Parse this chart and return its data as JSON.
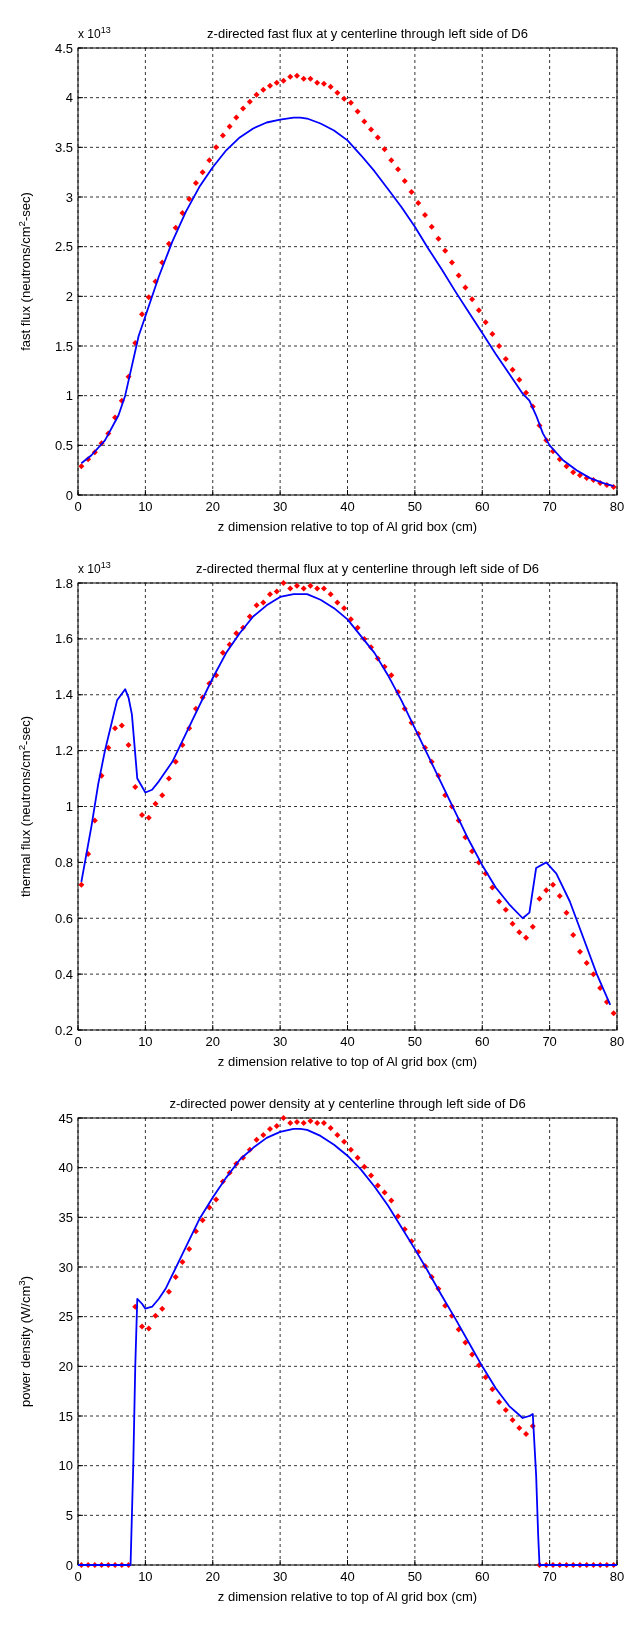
{
  "chart_data": [
    {
      "type": "line",
      "title": "z-directed fast flux at y centerline through left side of D6",
      "xlabel": "z dimension relative to top of Al grid box (cm)",
      "ylabel": "fast flux (neutrons/cm$^{2}$-sec)",
      "annotations": [
        "x 10$^{13}$"
      ],
      "xlim": [
        0,
        80
      ],
      "xticks": [
        0,
        10,
        20,
        30,
        40,
        50,
        60,
        70,
        80
      ],
      "ylim": [
        0,
        4.5
      ],
      "yticks": [
        0,
        0.5,
        1,
        1.5,
        2,
        2.5,
        3,
        3.5,
        4,
        4.5
      ],
      "grid": true,
      "series": [
        {
          "type": "scatter",
          "marker": "diamond",
          "color": "#ff0000",
          "x": [
            0.5,
            1.5,
            2.5,
            3.5,
            4.5,
            5.5,
            6.5,
            7.5,
            8.5,
            9.5,
            10.5,
            11.5,
            12.5,
            13.5,
            14.5,
            15.5,
            16.5,
            17.5,
            18.5,
            19.5,
            20.5,
            21.5,
            22.5,
            23.5,
            24.5,
            25.5,
            26.5,
            27.5,
            28.5,
            29.5,
            30.5,
            31.5,
            32.5,
            33.5,
            34.5,
            35.5,
            36.5,
            37.5,
            38.5,
            39.5,
            40.5,
            41.5,
            42.5,
            43.5,
            44.5,
            45.5,
            46.5,
            47.5,
            48.5,
            49.5,
            50.5,
            51.5,
            52.5,
            53.5,
            54.5,
            55.5,
            56.5,
            57.5,
            58.5,
            59.5,
            60.5,
            61.5,
            62.5,
            63.5,
            64.5,
            65.5,
            66.5,
            67.5,
            68.5,
            69.5,
            70.5,
            71.5,
            72.5,
            73.5,
            74.5,
            75.5,
            76.5,
            77.5,
            78.5,
            79.5
          ],
          "values": [
            0.29,
            0.36,
            0.43,
            0.52,
            0.62,
            0.78,
            0.95,
            1.19,
            1.53,
            1.82,
            1.99,
            2.15,
            2.34,
            2.53,
            2.69,
            2.84,
            2.98,
            3.14,
            3.25,
            3.37,
            3.5,
            3.62,
            3.71,
            3.8,
            3.89,
            3.96,
            4.03,
            4.08,
            4.12,
            4.15,
            4.17,
            4.21,
            4.22,
            4.19,
            4.19,
            4.15,
            4.14,
            4.11,
            4.05,
            3.99,
            3.95,
            3.86,
            3.76,
            3.68,
            3.6,
            3.48,
            3.37,
            3.28,
            3.16,
            3.05,
            2.94,
            2.82,
            2.7,
            2.58,
            2.46,
            2.34,
            2.21,
            2.09,
            1.97,
            1.86,
            1.74,
            1.62,
            1.5,
            1.37,
            1.26,
            1.16,
            1.03,
            0.89,
            0.7,
            0.55,
            0.44,
            0.36,
            0.29,
            0.23,
            0.2,
            0.17,
            0.15,
            0.12,
            0.1,
            0.08
          ]
        },
        {
          "line_style": "solid",
          "color": "#0000ff",
          "x": [
            0.5,
            2,
            4,
            6,
            7,
            8,
            9,
            10,
            12,
            14,
            16,
            18,
            20,
            22,
            24,
            26,
            28,
            30,
            32,
            33,
            34,
            36,
            38,
            40,
            42,
            44,
            46,
            48,
            50,
            52,
            54,
            56,
            58,
            60,
            62,
            64,
            66,
            67,
            68,
            69,
            70,
            72,
            74,
            76,
            78,
            79.5
          ],
          "values": [
            0.32,
            0.4,
            0.55,
            0.8,
            1.0,
            1.3,
            1.6,
            1.8,
            2.2,
            2.55,
            2.85,
            3.1,
            3.3,
            3.47,
            3.6,
            3.69,
            3.75,
            3.78,
            3.8,
            3.8,
            3.79,
            3.74,
            3.67,
            3.57,
            3.42,
            3.26,
            3.08,
            2.9,
            2.7,
            2.48,
            2.27,
            2.05,
            1.84,
            1.63,
            1.42,
            1.22,
            1.02,
            0.95,
            0.8,
            0.62,
            0.5,
            0.35,
            0.25,
            0.17,
            0.12,
            0.09
          ]
        }
      ]
    },
    {
      "type": "line",
      "title": "z-directed thermal flux at y centerline through left side of D6",
      "xlabel": "z dimension relative to top of Al grid box (cm)",
      "ylabel": "thermal flux (neutrons/cm$^{2}$-sec)",
      "annotations": [
        "x 10$^{13}$"
      ],
      "xlim": [
        0,
        80
      ],
      "xticks": [
        0,
        10,
        20,
        30,
        40,
        50,
        60,
        70,
        80
      ],
      "ylim": [
        0.2,
        1.8
      ],
      "yticks": [
        0.2,
        0.4,
        0.6,
        0.8,
        1,
        1.2,
        1.4,
        1.6,
        1.8
      ],
      "grid": true,
      "series": [
        {
          "type": "scatter",
          "marker": "diamond",
          "color": "#ff0000",
          "x": [
            0.5,
            1.5,
            2.5,
            3.5,
            4.5,
            5.5,
            6.5,
            7.5,
            8.5,
            9.5,
            10.5,
            11.5,
            12.5,
            13.5,
            14.5,
            15.5,
            16.5,
            17.5,
            18.5,
            19.5,
            20.5,
            21.5,
            22.5,
            23.5,
            24.5,
            25.5,
            26.5,
            27.5,
            28.5,
            29.5,
            30.5,
            31.5,
            32.5,
            33.5,
            34.5,
            35.5,
            36.5,
            37.5,
            38.5,
            39.5,
            40.5,
            41.5,
            42.5,
            43.5,
            44.5,
            45.5,
            46.5,
            47.5,
            48.5,
            49.5,
            50.5,
            51.5,
            52.5,
            53.5,
            54.5,
            55.5,
            56.5,
            57.5,
            58.5,
            59.5,
            60.5,
            61.5,
            62.5,
            63.5,
            64.5,
            65.5,
            66.5,
            67.5,
            68.5,
            69.5,
            70.5,
            71.5,
            72.5,
            73.5,
            74.5,
            75.5,
            76.5,
            77.5,
            78.5,
            79.5
          ],
          "values": [
            0.72,
            0.83,
            0.95,
            1.11,
            1.21,
            1.28,
            1.29,
            1.22,
            1.07,
            0.97,
            0.96,
            1.01,
            1.04,
            1.1,
            1.16,
            1.22,
            1.28,
            1.35,
            1.39,
            1.44,
            1.47,
            1.55,
            1.58,
            1.62,
            1.64,
            1.68,
            1.72,
            1.73,
            1.76,
            1.77,
            1.8,
            1.78,
            1.79,
            1.78,
            1.79,
            1.78,
            1.78,
            1.76,
            1.73,
            1.71,
            1.67,
            1.64,
            1.6,
            1.57,
            1.53,
            1.5,
            1.47,
            1.41,
            1.35,
            1.3,
            1.26,
            1.21,
            1.16,
            1.11,
            1.04,
            1.0,
            0.95,
            0.89,
            0.84,
            0.8,
            0.76,
            0.71,
            0.66,
            0.63,
            0.58,
            0.55,
            0.53,
            0.57,
            0.67,
            0.7,
            0.72,
            0.68,
            0.62,
            0.54,
            0.48,
            0.44,
            0.4,
            0.35,
            0.3,
            0.26
          ]
        },
        {
          "line_style": "solid",
          "color": "#0000ff",
          "x": [
            0.5,
            2,
            3,
            4,
            5,
            5.8,
            7,
            7.5,
            8,
            8.8,
            10,
            11,
            12,
            14,
            16,
            18,
            20,
            22,
            24,
            26,
            28,
            30,
            32,
            33,
            34,
            36,
            38,
            40,
            42,
            44,
            46,
            48,
            50,
            52,
            54,
            56,
            58,
            60,
            62,
            64,
            66,
            67,
            68,
            69.5,
            71,
            73,
            75,
            77,
            79
          ],
          "values": [
            0.73,
            0.93,
            1.08,
            1.2,
            1.3,
            1.38,
            1.42,
            1.39,
            1.33,
            1.1,
            1.05,
            1.06,
            1.09,
            1.16,
            1.26,
            1.36,
            1.46,
            1.55,
            1.62,
            1.68,
            1.72,
            1.75,
            1.76,
            1.76,
            1.76,
            1.74,
            1.71,
            1.67,
            1.61,
            1.55,
            1.47,
            1.38,
            1.28,
            1.18,
            1.08,
            0.98,
            0.88,
            0.79,
            0.71,
            0.65,
            0.6,
            0.62,
            0.78,
            0.8,
            0.76,
            0.66,
            0.53,
            0.4,
            0.29
          ]
        }
      ]
    },
    {
      "type": "line",
      "title": "z-directed power density at y centerline through left side of D6",
      "xlabel": "z dimension relative to top of Al grid box (cm)",
      "ylabel": "power density (W/cm$^{3}$)",
      "xlim": [
        0,
        80
      ],
      "xticks": [
        0,
        10,
        20,
        30,
        40,
        50,
        60,
        70,
        80
      ],
      "ylim": [
        0,
        45
      ],
      "yticks": [
        0,
        5,
        10,
        15,
        20,
        25,
        30,
        35,
        40,
        45
      ],
      "grid": true,
      "series": [
        {
          "type": "scatter",
          "marker": "diamond",
          "color": "#ff0000",
          "x": [
            0.5,
            1.5,
            2.5,
            3.5,
            4.5,
            5.5,
            6.5,
            7.5,
            8.5,
            9.5,
            10.5,
            11.5,
            12.5,
            13.5,
            14.5,
            15.5,
            16.5,
            17.5,
            18.5,
            19.5,
            20.5,
            21.5,
            22.5,
            23.5,
            24.5,
            25.5,
            26.5,
            27.5,
            28.5,
            29.5,
            30.5,
            31.5,
            32.5,
            33.5,
            34.5,
            35.5,
            36.5,
            37.5,
            38.5,
            39.5,
            40.5,
            41.5,
            42.5,
            43.5,
            44.5,
            45.5,
            46.5,
            47.5,
            48.5,
            49.5,
            50.5,
            51.5,
            52.5,
            53.5,
            54.5,
            55.5,
            56.5,
            57.5,
            58.5,
            59.5,
            60.5,
            61.5,
            62.5,
            63.5,
            64.5,
            65.5,
            66.5,
            67.5,
            68.5,
            69.5,
            70.5,
            71.5,
            72.5,
            73.5,
            74.5,
            75.5,
            76.5,
            77.5,
            78.5,
            79.5
          ],
          "values": [
            0,
            0,
            0,
            0,
            0,
            0,
            0,
            0,
            26,
            24,
            23.8,
            25.1,
            25.8,
            27.5,
            29,
            30.5,
            31.8,
            33.6,
            34.7,
            36,
            36.8,
            38.6,
            39.5,
            40.4,
            41,
            41.8,
            42.8,
            43.3,
            43.9,
            44.2,
            45,
            44.5,
            44.6,
            44.5,
            44.7,
            44.5,
            44.5,
            44,
            43.3,
            42.6,
            41.8,
            41,
            40.1,
            39.2,
            38.2,
            37.5,
            36.7,
            35.1,
            33.8,
            32.6,
            31.5,
            30.1,
            29,
            27.8,
            26.1,
            25.1,
            23.7,
            22.4,
            21.2,
            20.1,
            18.9,
            17.7,
            16.4,
            15.6,
            14.6,
            13.8,
            13.2,
            14,
            0,
            0,
            0,
            0,
            0,
            0,
            0,
            0,
            0,
            0,
            0,
            0
          ]
        },
        {
          "line_style": "solid",
          "color": "#0000ff",
          "x": [
            0,
            7.8,
            8.2,
            8.5,
            8.8,
            9.5,
            10,
            11,
            12,
            13,
            14,
            16,
            18,
            20,
            22,
            24,
            26,
            28,
            30,
            32,
            33,
            34,
            36,
            38,
            40,
            42,
            44,
            46,
            48,
            50,
            52,
            54,
            56,
            58,
            60,
            62,
            64,
            66,
            67,
            67.5,
            68,
            68.3,
            68.5,
            80
          ],
          "values": [
            0,
            0,
            10,
            20,
            26.8,
            26.3,
            25.8,
            26,
            26.8,
            27.8,
            29.2,
            32,
            34.8,
            37,
            39,
            40.8,
            42,
            43,
            43.6,
            43.9,
            43.9,
            43.8,
            43.2,
            42.3,
            41.2,
            39.8,
            38.1,
            36.2,
            34,
            31.8,
            29.5,
            27.1,
            24.8,
            22.4,
            20,
            17.8,
            16,
            14.8,
            15,
            15.2,
            9,
            3,
            0,
            0
          ]
        }
      ]
    }
  ]
}
